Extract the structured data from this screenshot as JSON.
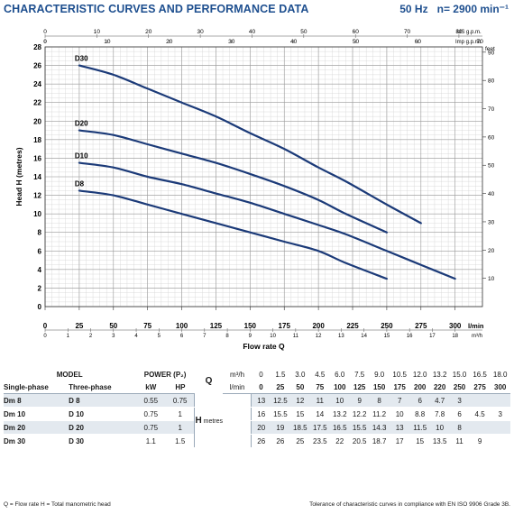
{
  "header": {
    "title": "CHARACTERISTIC CURVES AND PERFORMANCE DATA",
    "freq": "50 Hz",
    "speed": "n= 2900 min⁻¹"
  },
  "chart_data": {
    "type": "line",
    "ylabel": "Head H (metres)",
    "xlabel": "Flow rate Q",
    "x_unit": "l/min",
    "x_m3h_unit": "m³/h",
    "top_us_unit": "US g.p.m.",
    "top_imp_unit": "Imp g.p.m.",
    "feet_unit": "feet",
    "xlim": [
      0,
      320
    ],
    "ylim": [
      0,
      28
    ],
    "grid": true,
    "x_ticks": [
      0,
      25,
      50,
      75,
      100,
      125,
      150,
      175,
      200,
      225,
      250,
      275,
      300
    ],
    "y_ticks": [
      0,
      2,
      4,
      6,
      8,
      10,
      12,
      14,
      16,
      18,
      20,
      22,
      24,
      26,
      28
    ],
    "m3h_ticks": [
      0,
      1,
      2,
      3,
      4,
      5,
      6,
      7,
      8,
      9,
      10,
      11,
      12,
      13,
      14,
      15,
      16,
      17,
      18
    ],
    "us_ticks": [
      0,
      10,
      20,
      30,
      40,
      50,
      60,
      70,
      80
    ],
    "imp_ticks": [
      0,
      10,
      20,
      30,
      40,
      50,
      60,
      70
    ],
    "feet_ticks": [
      10,
      20,
      30,
      40,
      50,
      60,
      70,
      80,
      90
    ],
    "line_color": "#1b3a78",
    "series": [
      {
        "name": "D30",
        "x": [
          25,
          50,
          75,
          100,
          125,
          150,
          175,
          200,
          220,
          250,
          275
        ],
        "y": [
          26,
          25,
          23.5,
          22,
          20.5,
          18.7,
          17,
          15,
          13.5,
          11,
          9
        ]
      },
      {
        "name": "D20",
        "x": [
          25,
          50,
          75,
          100,
          125,
          150,
          175,
          200,
          220,
          250
        ],
        "y": [
          19,
          18.5,
          17.5,
          16.5,
          15.5,
          14.3,
          13,
          11.5,
          10,
          8
        ]
      },
      {
        "name": "D10",
        "x": [
          25,
          50,
          75,
          100,
          125,
          150,
          175,
          200,
          220,
          250,
          275,
          300
        ],
        "y": [
          15.5,
          15,
          14,
          13.2,
          12.2,
          11.2,
          10,
          8.8,
          7.8,
          6,
          4.5,
          3
        ]
      },
      {
        "name": "D8",
        "x": [
          25,
          50,
          75,
          100,
          125,
          150,
          175,
          200,
          220,
          250
        ],
        "y": [
          12.5,
          12,
          11,
          10,
          9,
          8,
          7,
          6,
          4.7,
          3
        ]
      }
    ]
  },
  "table": {
    "h_model": "MODEL",
    "h_power": "POWER (P₂)",
    "h_q": "Q",
    "h_q_m3h": "m³/h",
    "h_q_lmin": "l/min",
    "h_single": "Single-phase",
    "h_three": "Three-phase",
    "h_kw": "kW",
    "h_hp": "HP",
    "h_h": "H",
    "h_metres": "metres",
    "q_m3h": [
      "0",
      "1.5",
      "3.0",
      "4.5",
      "6.0",
      "7.5",
      "9.0",
      "10.5",
      "12.0",
      "13.2",
      "15.0",
      "16.5",
      "18.0"
    ],
    "q_lmin": [
      "0",
      "25",
      "50",
      "75",
      "100",
      "125",
      "150",
      "175",
      "200",
      "220",
      "250",
      "275",
      "300"
    ],
    "rows": [
      {
        "single": "Dm 8",
        "three": "D 8",
        "kw": "0.55",
        "hp": "0.75",
        "h": [
          "13",
          "12.5",
          "12",
          "11",
          "10",
          "9",
          "8",
          "7",
          "6",
          "4.7",
          "3",
          "",
          ""
        ]
      },
      {
        "single": "Dm 10",
        "three": "D 10",
        "kw": "0.75",
        "hp": "1",
        "h": [
          "16",
          "15.5",
          "15",
          "14",
          "13.2",
          "12.2",
          "11.2",
          "10",
          "8.8",
          "7.8",
          "6",
          "4.5",
          "3"
        ]
      },
      {
        "single": "Dm 20",
        "three": "D 20",
        "kw": "0.75",
        "hp": "1",
        "h": [
          "20",
          "19",
          "18.5",
          "17.5",
          "16.5",
          "15.5",
          "14.3",
          "13",
          "11.5",
          "10",
          "8",
          "",
          ""
        ]
      },
      {
        "single": "Dm 30",
        "three": "D 30",
        "kw": "1.1",
        "hp": "1.5",
        "h": [
          "26",
          "26",
          "25",
          "23.5",
          "22",
          "20.5",
          "18.7",
          "17",
          "15",
          "13.5",
          "11",
          "9",
          ""
        ]
      }
    ]
  },
  "footer": {
    "left": "Q = Flow rate   H = Total manometric head",
    "right": "Tolerance of characteristic curves in compliance with EN ISO 9906 Grade 3B."
  }
}
